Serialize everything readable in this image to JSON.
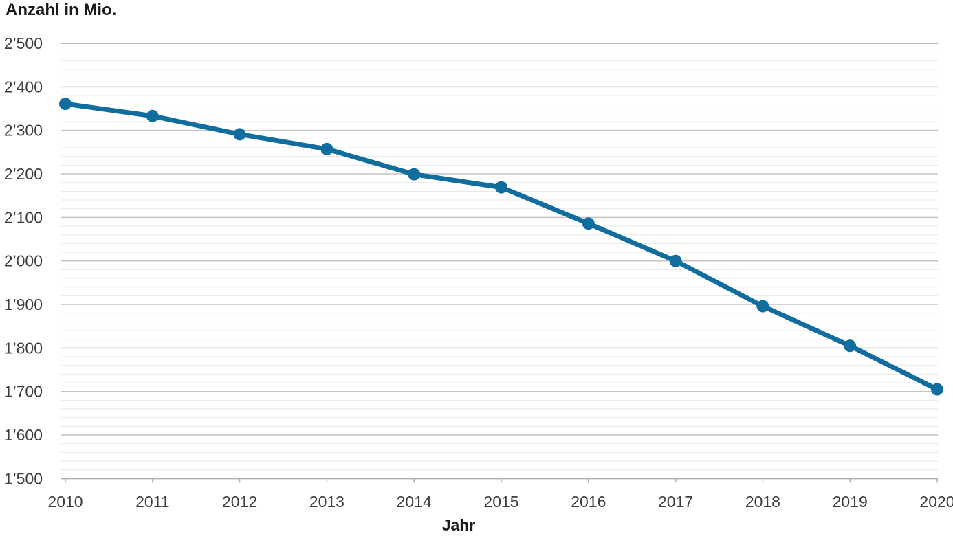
{
  "title": "Anzahl in Mio.",
  "chart_data": {
    "type": "line",
    "title": "Anzahl in Mio.",
    "xlabel": "Jahr",
    "ylabel": "Anzahl in Mio.",
    "categories": [
      "2010",
      "2011",
      "2012",
      "2013",
      "2014",
      "2015",
      "2016",
      "2017",
      "2018",
      "2019",
      "2020"
    ],
    "series": [
      {
        "name": "Anzahl in Mio.",
        "values": [
          2361,
          2333,
          2291,
          2257,
          2199,
          2169,
          2086,
          2000,
          1896,
          1805,
          1705
        ]
      }
    ],
    "ylim": [
      1500,
      2500
    ],
    "y_major_step": 100,
    "y_minor_step": 20,
    "y_tick_labels": [
      "2’500",
      "2’400",
      "2’300",
      "2’200",
      "2’100",
      "2’000",
      "1’900",
      "1’800",
      "1’700",
      "1’600",
      "1’500"
    ],
    "grid": "horizontal, major and minor lines, no vertical gridlines",
    "legend": "none",
    "marker": "filled-circle"
  },
  "colors": {
    "line": "#106d9e",
    "marker": "#106d9e",
    "grid_major": "#c4c4c4",
    "grid_minor": "#e7e7e7",
    "axis": "#b0b0b0",
    "tick_text": "#3d3d3d",
    "title_text": "#1a1a1a"
  }
}
